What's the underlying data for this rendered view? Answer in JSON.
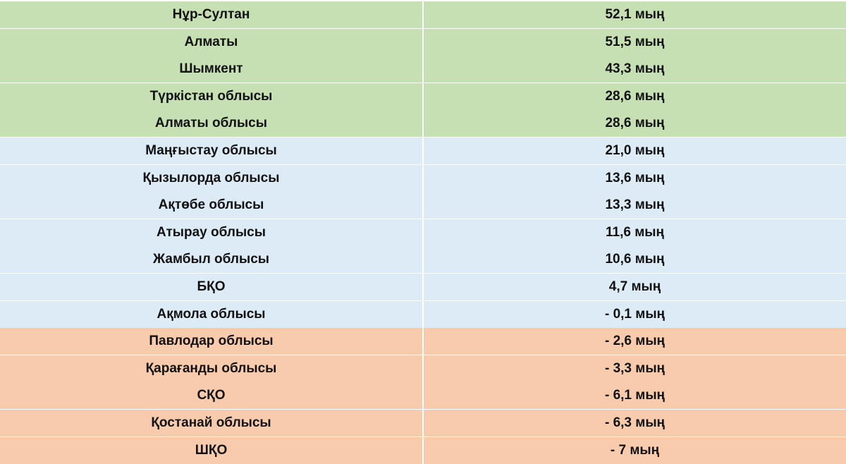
{
  "colors": {
    "green": "#c6e0b4",
    "blue": "#ddebf7",
    "orange": "#f8cbad",
    "separator": "#ffffff"
  },
  "rows": [
    {
      "region": "Нұр-Султан",
      "value": "52,1 мың",
      "group": "green"
    },
    {
      "region": "Алматы",
      "value": "51,5 мың",
      "group": "green"
    },
    {
      "region": "Шымкент",
      "value": "43,3 мың",
      "group": "green"
    },
    {
      "region": "Түркістан облысы",
      "value": "28,6 мың",
      "group": "green"
    },
    {
      "region": "Алматы облысы",
      "value": "28,6 мың",
      "group": "green"
    },
    {
      "region": "Маңғыстау облысы",
      "value": "21,0 мың",
      "group": "blue"
    },
    {
      "region": "Қызылорда облысы",
      "value": "13,6 мың",
      "group": "blue"
    },
    {
      "region": "Ақтөбе облысы",
      "value": "13,3 мың",
      "group": "blue"
    },
    {
      "region": "Атырау облысы",
      "value": "11,6 мың",
      "group": "blue"
    },
    {
      "region": "Жамбыл облысы",
      "value": "10,6 мың",
      "group": "blue"
    },
    {
      "region": "БҚО",
      "value": "4,7 мың",
      "group": "blue"
    },
    {
      "region": "Ақмола облысы",
      "value": "- 0,1 мың",
      "group": "blue"
    },
    {
      "region": "Павлодар облысы",
      "value": "- 2,6 мың",
      "group": "orange"
    },
    {
      "region": "Қарағанды облысы",
      "value": "- 3,3 мың",
      "group": "orange"
    },
    {
      "region": "СҚО",
      "value": "- 6,1 мың",
      "group": "orange"
    },
    {
      "region": "Қостанай облысы",
      "value": "- 6,3 мың",
      "group": "orange"
    },
    {
      "region": "ШҚО",
      "value": "- 7 мың",
      "group": "orange"
    }
  ]
}
